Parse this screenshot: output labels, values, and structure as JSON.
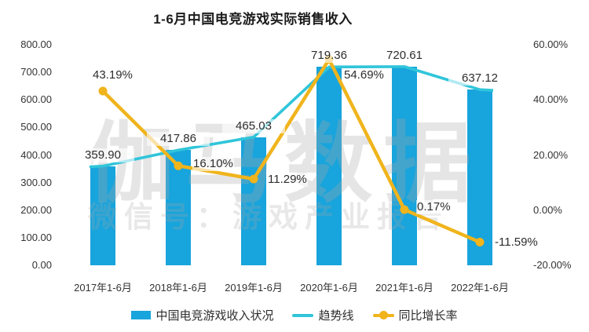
{
  "title": "1-6月中国电竞游戏实际销售收入",
  "watermark": {
    "line1": "伽马数据",
    "line2": "微信号：游戏产业报告"
  },
  "colors": {
    "bar": "#18a4dc",
    "trend_line": "#30c5da",
    "growth_line": "#f0b41c"
  },
  "chart_data": {
    "type": "combo-bar-line",
    "categories": [
      "2017年1-6月",
      "2018年1-6月",
      "2019年1-6月",
      "2020年1-6月",
      "2021年1-6月",
      "2022年1-6月"
    ],
    "series": [
      {
        "name": "中国电竞游戏收入状况",
        "type": "bar",
        "axis": "left",
        "values": [
          359.9,
          417.86,
          465.03,
          719.36,
          720.61,
          637.12
        ]
      },
      {
        "name": "趋势线",
        "type": "line",
        "axis": "left",
        "values": [
          359.9,
          417.86,
          465.03,
          719.36,
          720.61,
          637.12
        ]
      },
      {
        "name": "同比增长率",
        "type": "line",
        "axis": "right",
        "values": [
          43.19,
          16.1,
          11.29,
          54.69,
          0.17,
          -11.59
        ]
      }
    ],
    "bar_value_labels": [
      "359.90",
      "417.86",
      "465.03",
      "719.36",
      "720.61",
      "637.12"
    ],
    "growth_value_labels": [
      "43.19%",
      "16.10%",
      "11.29%",
      "54.69%",
      "0.17%",
      "-11.59%"
    ],
    "left_axis": {
      "min": 0,
      "max": 800,
      "tick_labels": [
        "800.00",
        "700.00",
        "600.00",
        "500.00",
        "400.00",
        "300.00",
        "200.00",
        "100.00",
        "0.00"
      ],
      "tick_values": [
        800,
        700,
        600,
        500,
        400,
        300,
        200,
        100,
        0
      ]
    },
    "right_axis": {
      "min": -20,
      "max": 60,
      "tick_labels": [
        "60.00%",
        "40.00%",
        "20.00%",
        "0.00%",
        "-20.00%"
      ],
      "tick_values": [
        60,
        40,
        20,
        0,
        -20
      ]
    },
    "grid": "off",
    "legend_position": "bottom"
  },
  "legend": {
    "items": [
      {
        "label": "中国电竞游戏收入状况",
        "swatch": "bar"
      },
      {
        "label": "趋势线",
        "swatch": "line"
      },
      {
        "label": "同比增长率",
        "swatch": "line-dot"
      }
    ]
  }
}
